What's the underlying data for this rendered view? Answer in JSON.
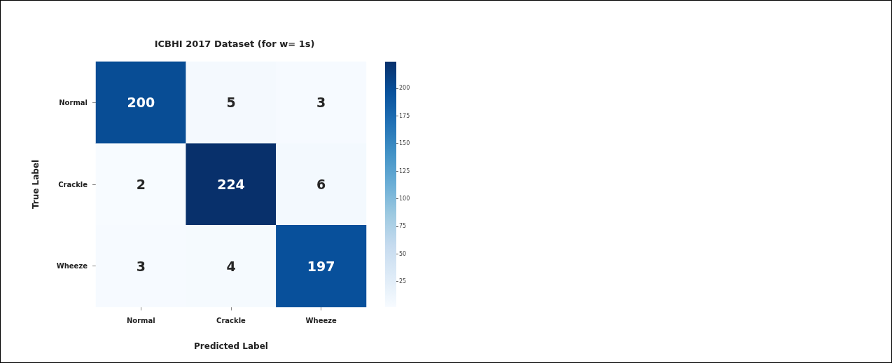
{
  "chart_data": {
    "type": "heatmap",
    "title": "ICBHI 2017 Dataset (for w= 1s)",
    "xlabel": "Predicted Label",
    "ylabel": "True Label",
    "categories": [
      "Normal",
      "Crackle",
      "Wheeze"
    ],
    "y_categories": [
      "Normal",
      "Crackle",
      "Wheeze"
    ],
    "cells": [
      [
        200,
        5,
        3
      ],
      [
        2,
        224,
        6
      ],
      [
        3,
        4,
        197
      ]
    ],
    "clim": [
      2,
      224
    ],
    "cticks": [
      25,
      50,
      75,
      100,
      125,
      150,
      175,
      200
    ],
    "data_labels": true
  }
}
